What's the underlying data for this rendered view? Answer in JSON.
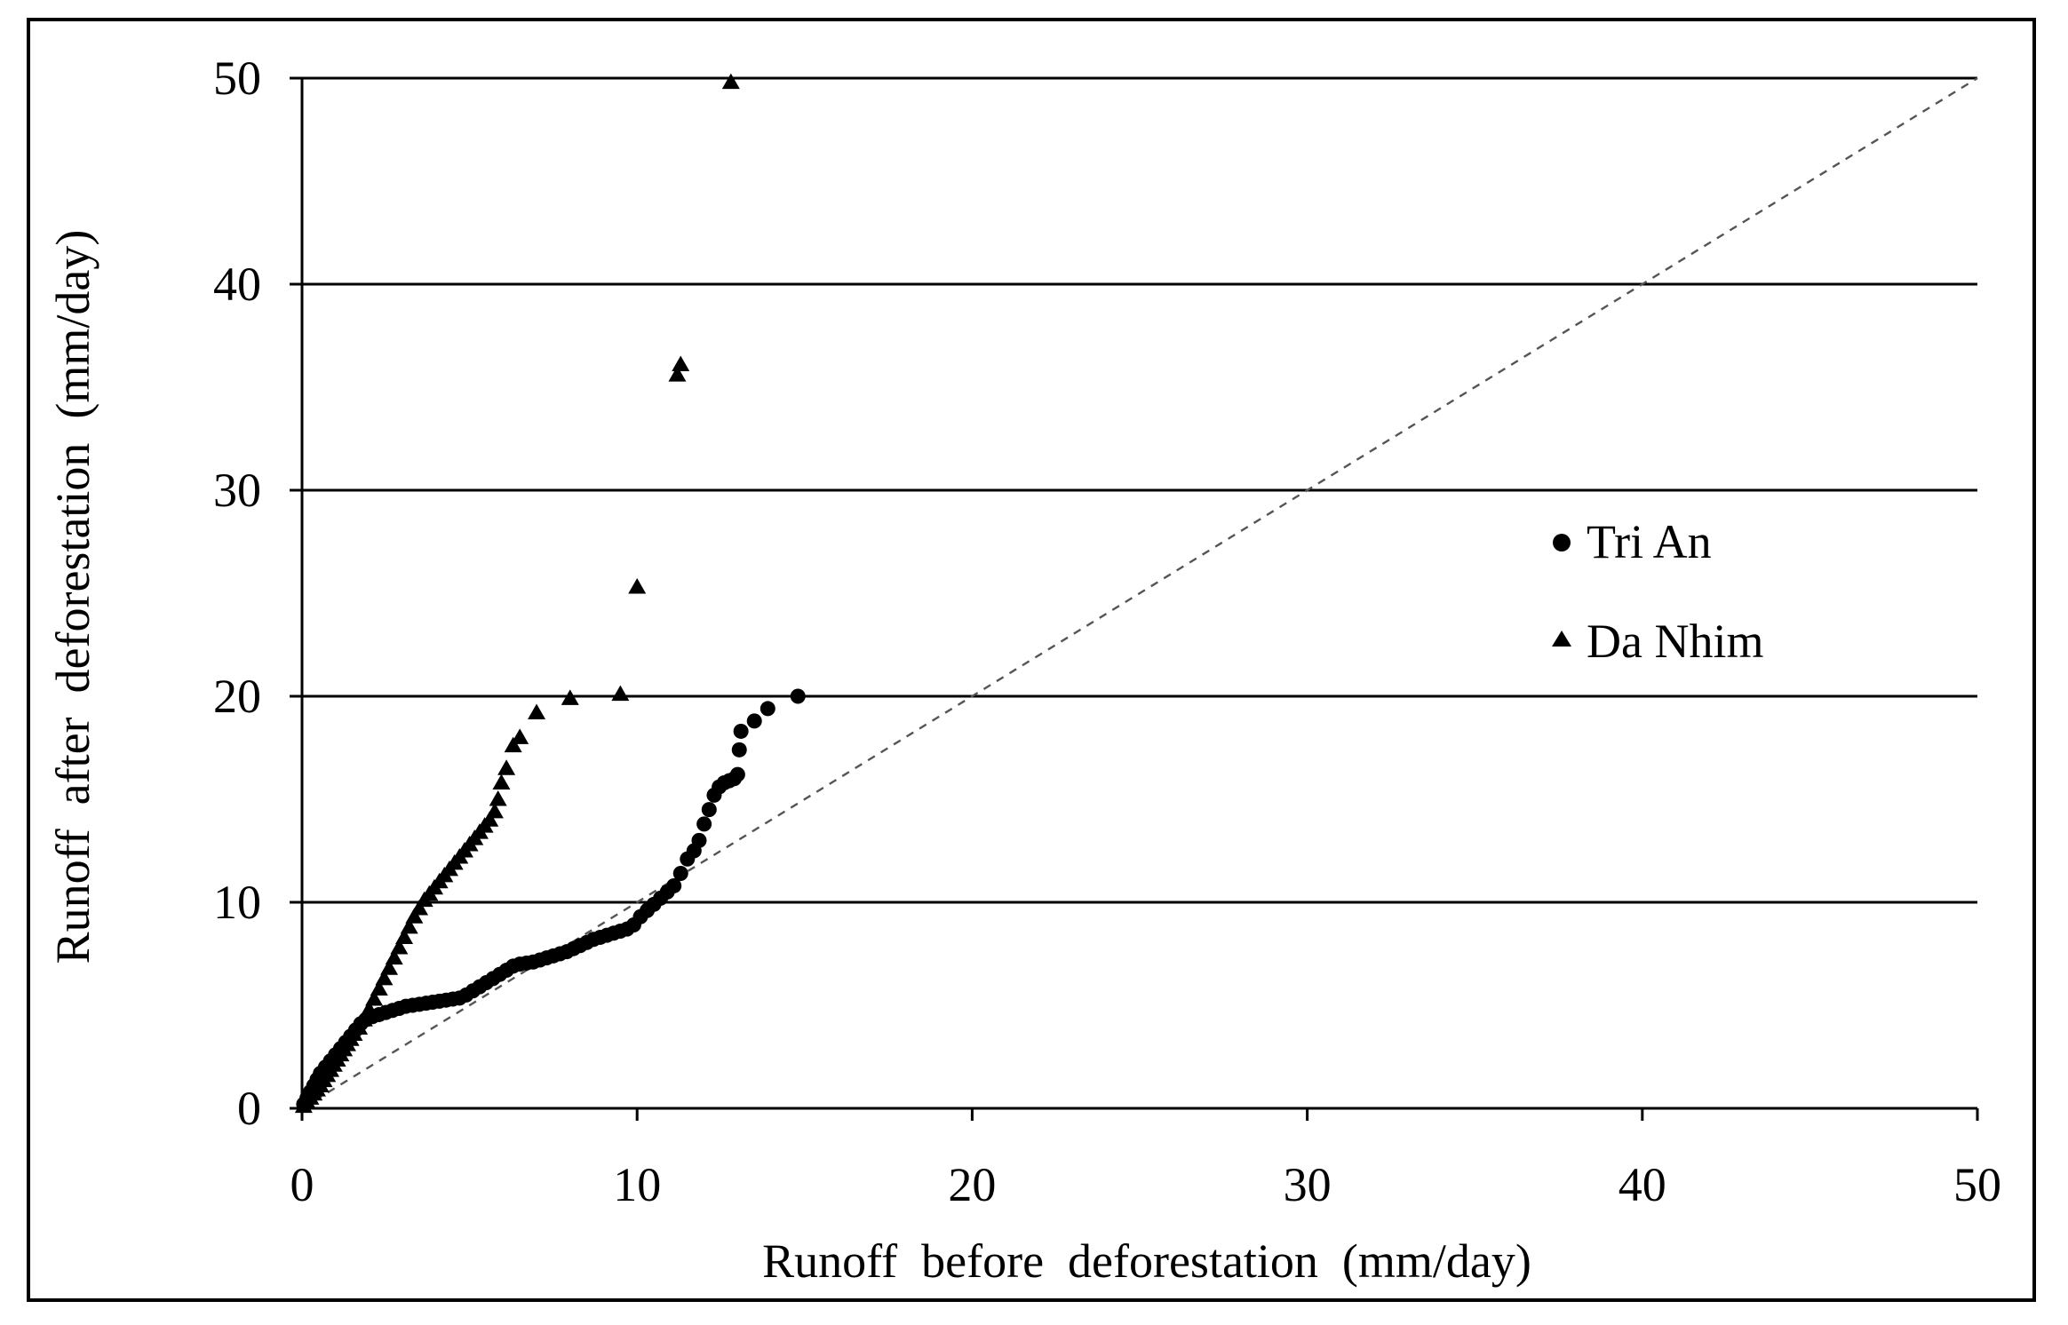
{
  "chart_data": {
    "type": "scatter",
    "title": "",
    "xlabel": "Runoff  before  deforestation  (mm/day)",
    "ylabel": "Runoff  after  deforestation  (mm/day)",
    "xlim": [
      0,
      50
    ],
    "ylim": [
      0,
      50
    ],
    "xticks": [
      "0",
      "10",
      "20",
      "30",
      "40",
      "50"
    ],
    "yticks": [
      "0",
      "10",
      "20",
      "30",
      "40",
      "50"
    ],
    "grid": "horizontal",
    "legend_position": "right",
    "reference_line": {
      "name": "1:1 line",
      "style": "dashed",
      "x": [
        0,
        50
      ],
      "y": [
        0,
        50
      ]
    },
    "series": [
      {
        "name": "Tri An",
        "marker": "circle",
        "color": "#000000",
        "x": [
          0.05,
          0.15,
          0.25,
          0.35,
          0.45,
          0.55,
          0.7,
          0.85,
          1.0,
          1.15,
          1.3,
          1.45,
          1.6,
          1.75,
          1.9,
          2.1,
          2.3,
          2.5,
          2.7,
          2.9,
          3.1,
          3.3,
          3.5,
          3.7,
          3.9,
          4.1,
          4.3,
          4.5,
          4.7,
          4.9,
          5.1,
          5.3,
          5.5,
          5.7,
          5.9,
          6.1,
          6.3,
          6.5,
          6.7,
          6.9,
          7.1,
          7.3,
          7.5,
          7.7,
          7.9,
          8.1,
          8.3,
          8.5,
          8.7,
          8.9,
          9.1,
          9.3,
          9.5,
          9.7,
          9.9,
          10.1,
          10.3,
          10.5,
          10.7,
          10.9,
          11.1,
          11.3,
          11.5,
          11.7,
          11.85,
          12.0,
          12.15,
          12.3,
          12.45,
          12.6,
          12.75,
          12.9,
          13.0,
          13.05,
          13.1,
          13.5,
          13.9,
          14.8
        ],
        "y": [
          0.2,
          0.5,
          0.8,
          1.1,
          1.4,
          1.7,
          2.0,
          2.3,
          2.6,
          2.9,
          3.2,
          3.5,
          3.8,
          4.1,
          4.3,
          4.45,
          4.55,
          4.65,
          4.75,
          4.85,
          4.95,
          5.0,
          5.05,
          5.1,
          5.15,
          5.2,
          5.25,
          5.3,
          5.35,
          5.5,
          5.7,
          5.9,
          6.1,
          6.3,
          6.5,
          6.7,
          6.9,
          7.0,
          7.05,
          7.1,
          7.2,
          7.3,
          7.4,
          7.5,
          7.6,
          7.75,
          7.9,
          8.05,
          8.2,
          8.3,
          8.4,
          8.5,
          8.6,
          8.7,
          8.9,
          9.3,
          9.6,
          9.9,
          10.2,
          10.5,
          10.8,
          11.4,
          12.1,
          12.5,
          13.0,
          13.8,
          14.5,
          15.2,
          15.6,
          15.8,
          15.9,
          16.0,
          16.2,
          17.4,
          18.3,
          18.8,
          19.4,
          20.0
        ]
      },
      {
        "name": "Da Nhim",
        "marker": "triangle",
        "color": "#000000",
        "x": [
          0.05,
          0.15,
          0.25,
          0.35,
          0.45,
          0.55,
          0.65,
          0.75,
          0.85,
          0.95,
          1.05,
          1.15,
          1.25,
          1.35,
          1.45,
          1.55,
          1.7,
          1.85,
          2.0,
          2.15,
          2.3,
          2.45,
          2.6,
          2.75,
          2.9,
          3.05,
          3.2,
          3.35,
          3.5,
          3.65,
          3.8,
          3.95,
          4.1,
          4.25,
          4.4,
          4.55,
          4.7,
          4.85,
          5.0,
          5.15,
          5.3,
          5.45,
          5.6,
          5.75,
          5.85,
          5.95,
          6.1,
          6.3,
          6.5,
          7.0,
          8.0,
          9.5,
          10.0,
          11.2,
          11.3,
          12.8
        ],
        "y": [
          0.1,
          0.3,
          0.5,
          0.7,
          0.9,
          1.1,
          1.35,
          1.6,
          1.85,
          2.1,
          2.35,
          2.6,
          2.85,
          3.1,
          3.35,
          3.6,
          3.9,
          4.3,
          4.8,
          5.3,
          5.8,
          6.3,
          6.8,
          7.3,
          7.8,
          8.3,
          8.8,
          9.3,
          9.7,
          10.1,
          10.4,
          10.7,
          11.0,
          11.3,
          11.6,
          11.9,
          12.2,
          12.5,
          12.8,
          13.1,
          13.4,
          13.7,
          14.0,
          14.4,
          15.0,
          15.8,
          16.5,
          17.6,
          18.0,
          19.2,
          19.9,
          20.1,
          25.3,
          35.6,
          36.1,
          49.8
        ]
      }
    ]
  }
}
